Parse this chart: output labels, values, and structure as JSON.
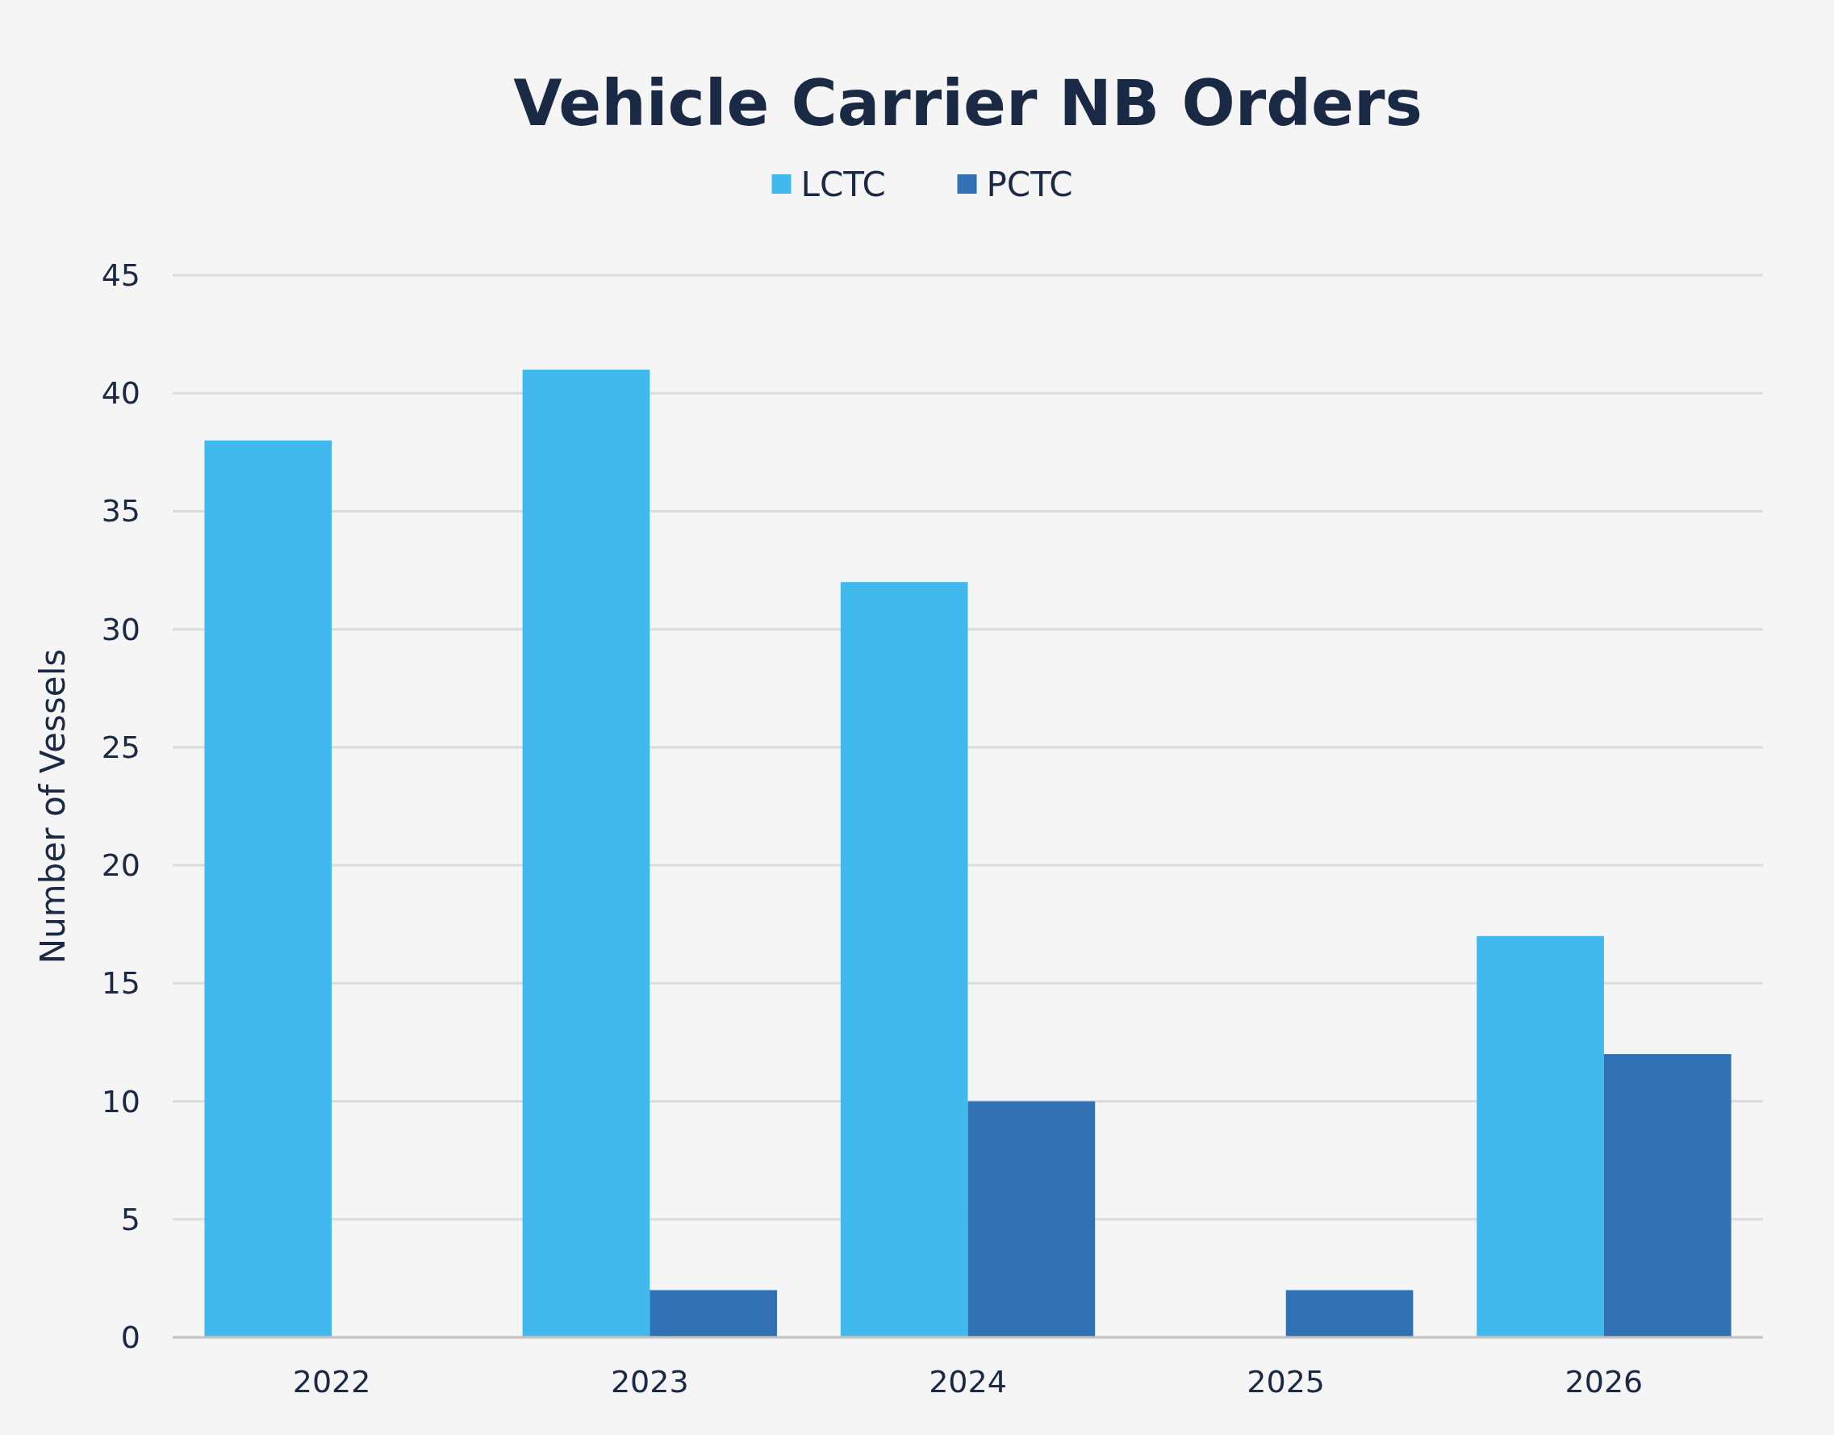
{
  "chart_data": {
    "type": "bar",
    "title": "Vehicle Carrier NB Orders",
    "ylabel": "Number of Vessels",
    "categories": [
      "2022",
      "2023",
      "2024",
      "2025",
      "2026"
    ],
    "series": [
      {
        "name": "LCTC",
        "color": "#42b9ec",
        "values": [
          38,
          41,
          32,
          0,
          17
        ]
      },
      {
        "name": "PCTC",
        "color": "#3171b3",
        "values": [
          0,
          2,
          10,
          2,
          12
        ]
      }
    ],
    "ylim": [
      0,
      45
    ],
    "yticks": [
      0,
      5,
      10,
      15,
      20,
      25,
      30,
      35,
      40,
      45
    ],
    "grid": "y",
    "legend": "top"
  }
}
